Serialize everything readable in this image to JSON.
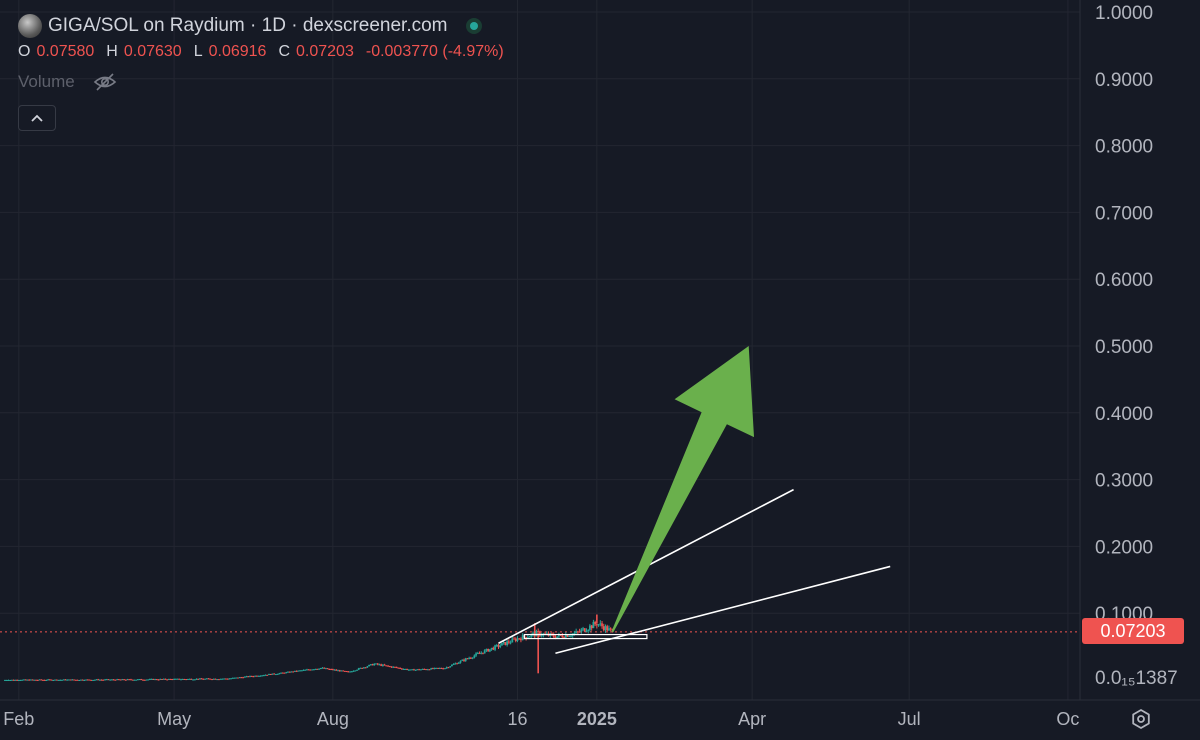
{
  "header": {
    "title": "GIGA/SOL on Raydium · 1D · dexscreener.com",
    "ohlc": [
      {
        "key": "O",
        "value": "0.07580"
      },
      {
        "key": "H",
        "value": "0.07630"
      },
      {
        "key": "L",
        "value": "0.06916"
      },
      {
        "key": "C",
        "value": "0.07203"
      }
    ],
    "change": "-0.003770 (-4.97%)",
    "volume_label": "Volume"
  },
  "colors": {
    "background": "#161a25",
    "grid": "#232631",
    "text": "#d1d4dc",
    "axis_text": "#b2b5be",
    "down": "#ef5350",
    "up": "#26a69a",
    "trendline": "#ffffff",
    "arrow": "#6ab04c"
  },
  "icons": [
    "eye-off-icon",
    "chevron-up-icon",
    "settings-icon"
  ],
  "price_axis": {
    "ticks": [
      "1.0000",
      "0.9000",
      "0.8000",
      "0.7000",
      "0.6000",
      "0.5000",
      "0.4000",
      "0.3000",
      "0.2000",
      "0.1000"
    ],
    "low_label": "0.0₁₅1387",
    "current_price": "0.07203"
  },
  "time_axis": {
    "labels": [
      "Feb",
      "May",
      "Aug",
      "16",
      "2025",
      "Apr",
      "Jul",
      "Oc"
    ]
  },
  "chart_data": {
    "type": "candlestick",
    "title": "GIGA/SOL on Raydium · 1D · dexscreener.com",
    "ylim": [
      0,
      1.0
    ],
    "x_range": [
      "2024-01-24",
      "2025-10-08"
    ],
    "last_close": 0.07203,
    "price_path": [
      {
        "date": "2024-01-24",
        "price": 0.0
      },
      {
        "date": "2024-04-01",
        "price": 0.0005
      },
      {
        "date": "2024-06-01",
        "price": 0.002
      },
      {
        "date": "2024-07-01",
        "price": 0.01
      },
      {
        "date": "2024-07-25",
        "price": 0.018
      },
      {
        "date": "2024-08-10",
        "price": 0.012
      },
      {
        "date": "2024-08-25",
        "price": 0.024
      },
      {
        "date": "2024-09-15",
        "price": 0.015
      },
      {
        "date": "2024-10-05",
        "price": 0.018
      },
      {
        "date": "2024-10-25",
        "price": 0.04
      },
      {
        "date": "2024-11-16",
        "price": 0.062
      },
      {
        "date": "2024-11-28",
        "price": 0.07
      },
      {
        "date": "2024-12-08",
        "price": 0.065
      },
      {
        "date": "2024-12-20",
        "price": 0.07
      },
      {
        "date": "2025-01-01",
        "price": 0.085
      },
      {
        "date": "2025-01-10",
        "price": 0.072
      }
    ],
    "extremes": [
      {
        "date": "2024-11-26",
        "high": 0.085
      },
      {
        "date": "2024-11-28",
        "low": 0.01
      },
      {
        "date": "2025-01-01",
        "high": 0.098
      }
    ],
    "drawings": [
      {
        "type": "trendline",
        "from": {
          "date": "2024-11-05",
          "price": 0.055
        },
        "to": {
          "date": "2025-04-25",
          "price": 0.285
        }
      },
      {
        "type": "trendline",
        "from": {
          "date": "2024-12-08",
          "price": 0.04
        },
        "to": {
          "date": "2025-06-20",
          "price": 0.17
        }
      },
      {
        "type": "horizontal-segment",
        "from": {
          "date": "2024-11-20",
          "price": 0.065
        },
        "to": {
          "date": "2025-01-30",
          "price": 0.065
        }
      },
      {
        "type": "arrow",
        "from": {
          "date": "2025-01-10",
          "price": 0.072
        },
        "to": {
          "date": "2025-03-30",
          "price": 0.5
        }
      }
    ]
  }
}
